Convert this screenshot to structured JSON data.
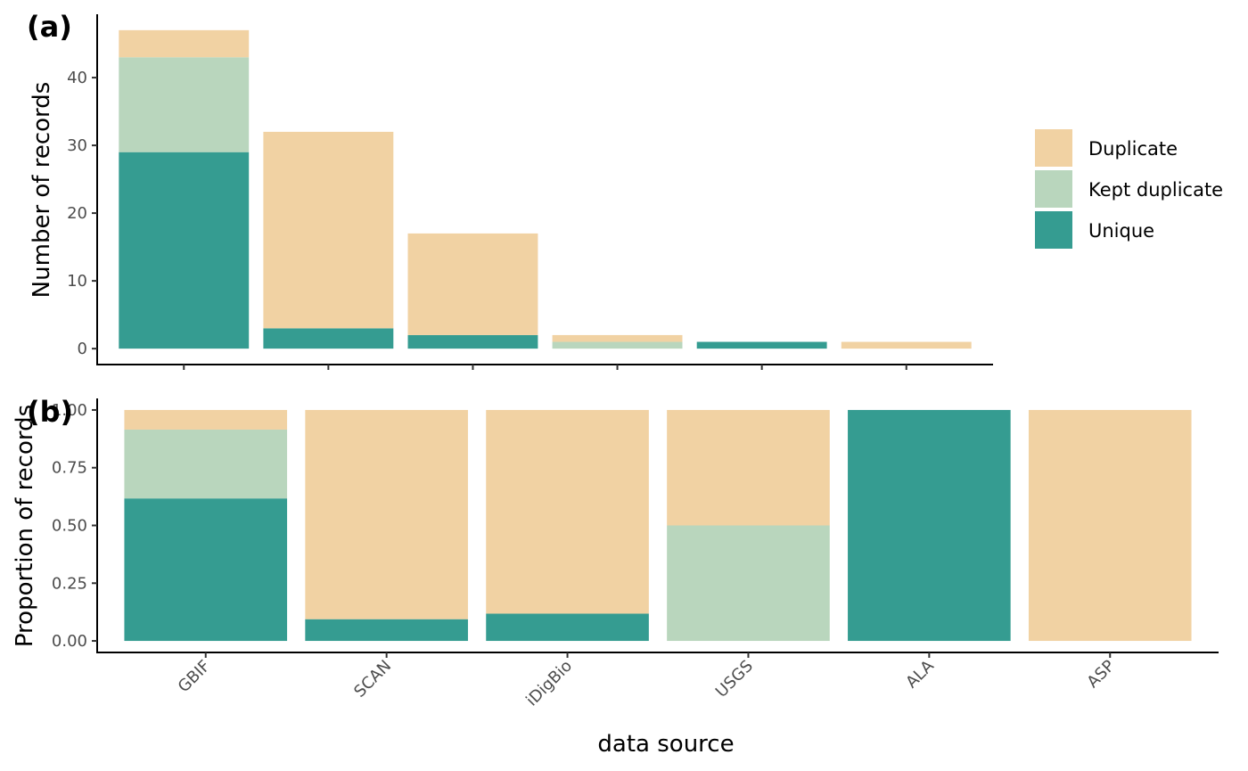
{
  "chart_data": [
    {
      "panel_label": "(a)",
      "type": "bar",
      "stacked": true,
      "categories": [
        "GBIF",
        "SCAN",
        "iDigBio",
        "USGS",
        "ALA",
        "ASP"
      ],
      "series": [
        {
          "name": "Unique",
          "values": [
            29,
            3,
            2,
            0,
            1,
            0
          ]
        },
        {
          "name": "Kept duplicate",
          "values": [
            14,
            0,
            0,
            1,
            0,
            0
          ]
        },
        {
          "name": "Duplicate",
          "values": [
            4,
            29,
            15,
            1,
            0,
            1
          ]
        }
      ],
      "ylabel": "Number of records",
      "yticks": [
        "0",
        "10",
        "20",
        "30",
        "40"
      ],
      "ylim": [
        -2.35,
        49.35
      ],
      "show_x_tick_labels": false,
      "grid": false
    },
    {
      "panel_label": "(b)",
      "type": "bar",
      "stacked": true,
      "normalized": true,
      "categories": [
        "GBIF",
        "SCAN",
        "iDigBio",
        "USGS",
        "ALA",
        "ASP"
      ],
      "series": [
        {
          "name": "Unique",
          "values": [
            0.617,
            0.094,
            0.118,
            0,
            1,
            0
          ]
        },
        {
          "name": "Kept duplicate",
          "values": [
            0.298,
            0,
            0,
            0.5,
            0,
            0
          ]
        },
        {
          "name": "Duplicate",
          "values": [
            0.085,
            0.906,
            0.882,
            0.5,
            0,
            1
          ]
        }
      ],
      "xlabel": "data source",
      "ylabel": "Proportion of records",
      "yticks": [
        "0.00",
        "0.25",
        "0.50",
        "0.75",
        "1.00"
      ],
      "ylim": [
        -0.05,
        1.05
      ],
      "grid": false
    }
  ],
  "legend": {
    "position": "right",
    "items": [
      {
        "label": "Duplicate",
        "color": "#F1D2A3"
      },
      {
        "label": "Kept duplicate",
        "color": "#B9D6BD"
      },
      {
        "label": "Unique",
        "color": "#359C91"
      }
    ]
  },
  "colors": {
    "Unique": "#359C91",
    "Kept duplicate": "#B9D6BD",
    "Duplicate": "#F1D2A3"
  }
}
